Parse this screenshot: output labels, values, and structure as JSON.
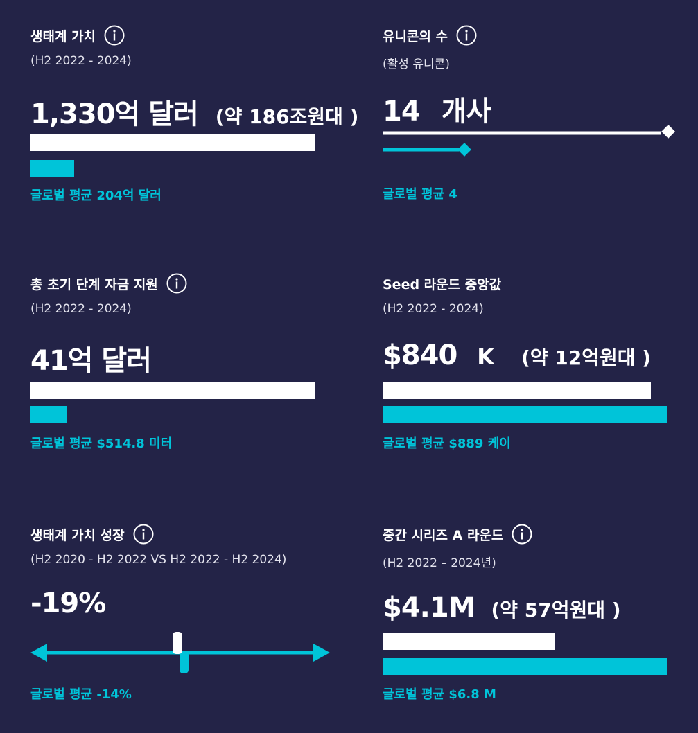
{
  "colors": {
    "background": "#232347",
    "primary": "#ffffff",
    "accent": "#00c4d9"
  },
  "ecosystem_value": {
    "title": "생태계 가치",
    "subtitle": "(H2 2022 - 2024)",
    "value": "1,330억 달러",
    "note": "(약 186조원대 )",
    "global_avg": "글로벌 평균 204억 달러",
    "value_fraction": 1.0,
    "avg_fraction": 0.153,
    "icon": "info-icon"
  },
  "unicorns": {
    "title": "유니콘의 수",
    "subtitle": "(활성 유니콘)",
    "value": "14",
    "unit": "개사",
    "global_avg": "글로벌 평균 4",
    "value_fraction": 1.0,
    "avg_fraction": 0.286,
    "icon": "info-icon"
  },
  "early_funding": {
    "title": "총 초기 단계 자금 지원",
    "subtitle": "(H2 2022 - 2024)",
    "value": "41억 달러",
    "global_avg": "글로벌 평균 $514.8 미터",
    "value_fraction": 1.0,
    "avg_fraction": 0.125,
    "icon": "info-icon"
  },
  "seed_median": {
    "title": "Seed 라운드 중앙값",
    "subtitle": "(H2 2022 - 2024)",
    "value": "$840",
    "unit": "K",
    "note": "(약 12억원대 )",
    "global_avg": "글로벌 평균 $889 케이",
    "value_fraction": 0.945,
    "avg_fraction": 1.0
  },
  "value_growth": {
    "title": "생태계 가치 성장",
    "subtitle": "(H2 2020 - H2 2022 VS H2 2022 - H2 2024)",
    "value": "-19%",
    "global_avg": "글로벌 평균 -14%",
    "value_percent": -19,
    "avg_percent": -14,
    "icon": "info-icon"
  },
  "series_a": {
    "title": "중간 시리즈 A 라운드",
    "subtitle": "(H2 2022 – 2024년)",
    "value": "$4.1M",
    "note": "(약 57억원대 )",
    "global_avg": "글로벌 평균 $6.8 M",
    "value_fraction": 0.603,
    "avg_fraction": 1.0,
    "icon": "info-icon"
  }
}
